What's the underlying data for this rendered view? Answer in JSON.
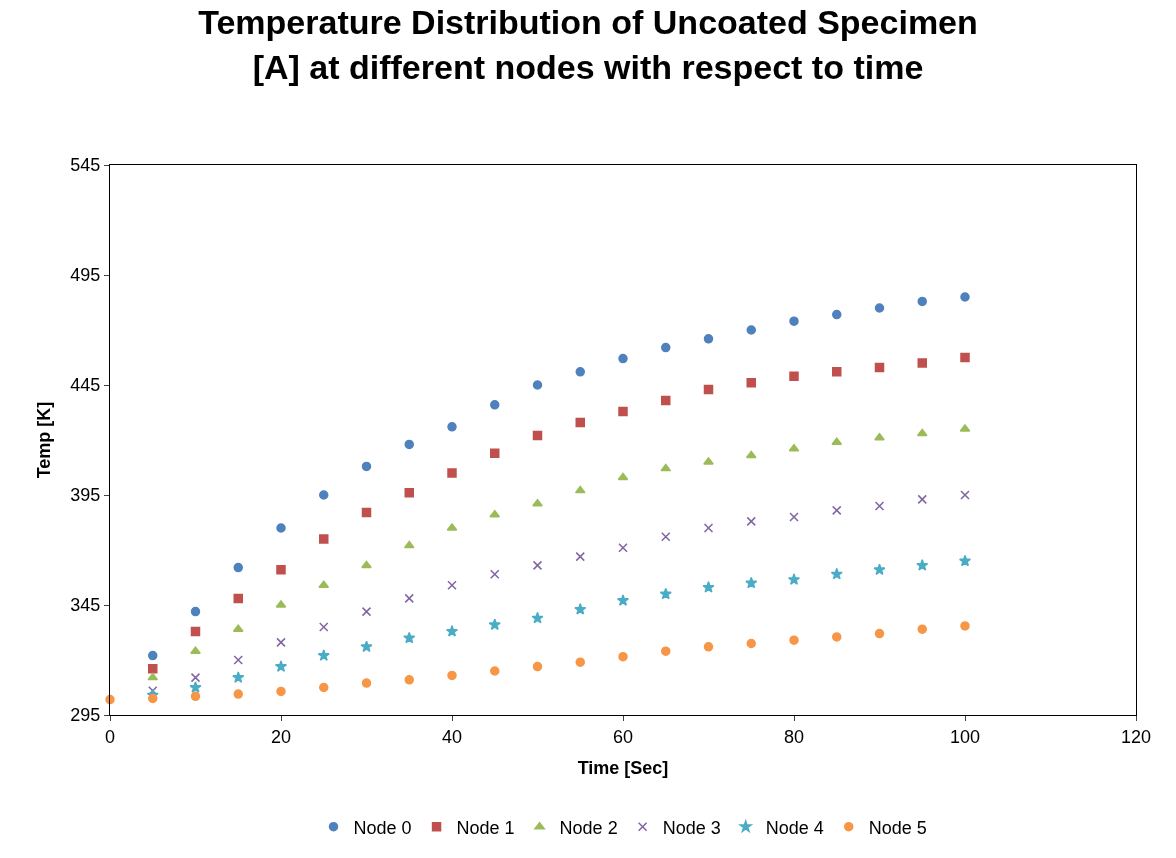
{
  "chart_data": {
    "type": "scatter",
    "title": "Temperature Distribution of Uncoated Specimen\n[A] at different nodes with respect to time",
    "xlabel": "Time [Sec]",
    "ylabel": "Temp [K]",
    "x": [
      0,
      5,
      10,
      15,
      20,
      25,
      30,
      35,
      40,
      45,
      50,
      55,
      60,
      65,
      70,
      75,
      80,
      85,
      90,
      95,
      100
    ],
    "xlim": [
      0,
      120
    ],
    "xticks": [
      0,
      20,
      40,
      60,
      80,
      100,
      120
    ],
    "ylim": [
      295,
      545
    ],
    "yticks": [
      295,
      345,
      395,
      445,
      495,
      545
    ],
    "legend": "bottom",
    "series": [
      {
        "name": "Node 0",
        "color": "#4f81bd",
        "marker": "circle",
        "values": [
          null,
          322,
          342,
          362,
          380,
          395,
          408,
          418,
          426,
          436,
          445,
          451,
          457,
          462,
          466,
          470,
          474,
          477,
          480,
          483,
          485
        ]
      },
      {
        "name": "Node 1",
        "color": "#c0504d",
        "marker": "square",
        "values": [
          null,
          316,
          333,
          348,
          361,
          375,
          387,
          396,
          405,
          414,
          422,
          428,
          433,
          438,
          443,
          446,
          449,
          451,
          453,
          455,
          457.5
        ]
      },
      {
        "name": "Node 2",
        "color": "#9bbb59",
        "marker": "triangle",
        "values": [
          null,
          312,
          324,
          334,
          345,
          354,
          363,
          372,
          380,
          386,
          391,
          397,
          403,
          407,
          410,
          413,
          416,
          419,
          421,
          423,
          425
        ]
      },
      {
        "name": "Node 3",
        "color": "#8064a2",
        "marker": "cross",
        "values": [
          null,
          306,
          312,
          320,
          328,
          335,
          342,
          348,
          354,
          359,
          363,
          367,
          371,
          376,
          380,
          383,
          385,
          388,
          390,
          393,
          395
        ]
      },
      {
        "name": "Node 4",
        "color": "#4bacc6",
        "marker": "star",
        "values": [
          null,
          304,
          307.5,
          312,
          317,
          322,
          326,
          330,
          333,
          336,
          339,
          343,
          347,
          350,
          353,
          355,
          356.5,
          359,
          361,
          363,
          365
        ]
      },
      {
        "name": "Node 5",
        "color": "#f79646",
        "marker": "circle",
        "values": [
          302,
          302.5,
          303.5,
          304.5,
          305.7,
          307.5,
          309.5,
          311,
          313,
          315,
          317,
          319,
          321.5,
          324,
          326,
          327.5,
          329,
          330.5,
          332,
          334,
          335.5
        ]
      }
    ]
  }
}
